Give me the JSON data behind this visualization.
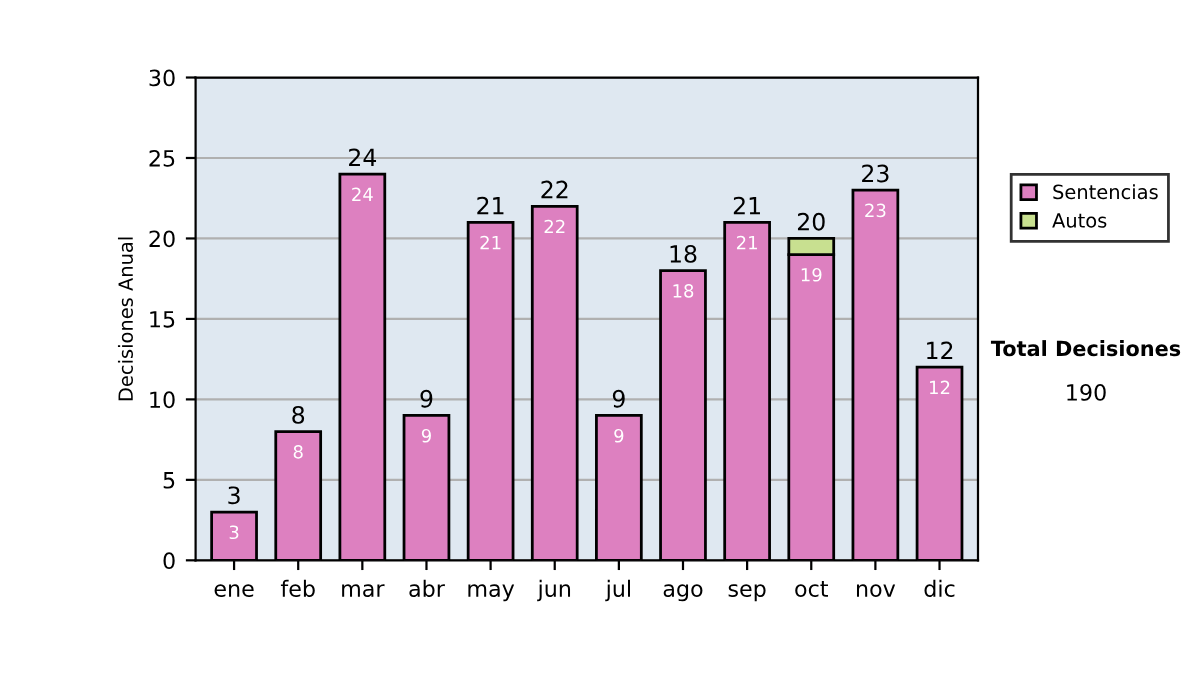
{
  "chart_data": {
    "type": "bar",
    "stacked": true,
    "ylabel": "Decisiones Anual",
    "categories": [
      "ene",
      "feb",
      "mar",
      "abr",
      "may",
      "jun",
      "jul",
      "ago",
      "sep",
      "oct",
      "nov",
      "dic"
    ],
    "series": [
      {
        "name": "Sentencias",
        "color": "#dd80c0",
        "values": [
          3,
          8,
          24,
          9,
          21,
          22,
          9,
          18,
          21,
          19,
          23,
          12
        ],
        "value_labels": [
          "3",
          "8",
          "24",
          "9",
          "21",
          "22",
          "9",
          "18",
          "21",
          "19",
          "23",
          "12"
        ]
      },
      {
        "name": "Autos",
        "color": "#c8e090",
        "values": [
          null,
          null,
          null,
          null,
          null,
          null,
          null,
          null,
          null,
          1,
          null,
          null
        ]
      }
    ],
    "totals": [
      "3",
      "8",
      "24",
      "9",
      "21",
      "22",
      "9",
      "18",
      "21",
      "20",
      "23",
      "12"
    ],
    "ylim": [
      0,
      30
    ],
    "yticks": [
      0,
      5,
      10,
      15,
      20,
      25,
      30
    ],
    "grid": "y",
    "legend": "right",
    "annotations": [
      "Total Decisiones",
      "190"
    ]
  }
}
